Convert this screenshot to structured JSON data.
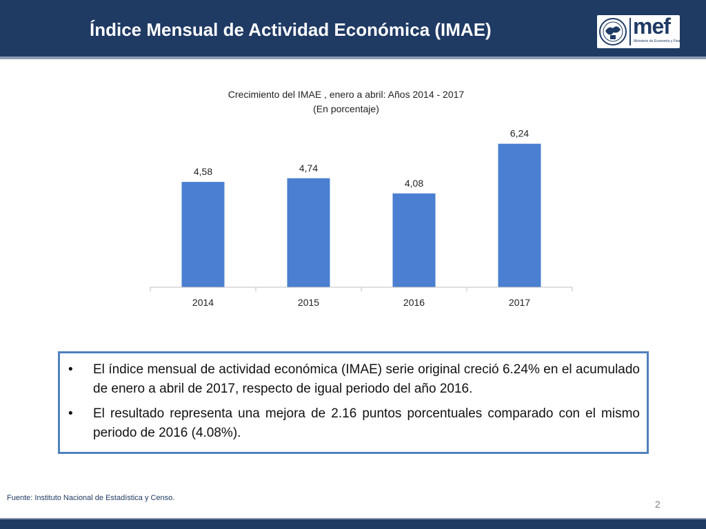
{
  "header": {
    "title": "Índice Mensual de Actividad Económica (IMAE)"
  },
  "logo": {
    "text": "mef",
    "subtitle": "Ministerio de Economía y Finanzas"
  },
  "colors": {
    "header_bg": "#1f3a63",
    "bar": "#4a7fd1",
    "box_border": "#4f81bd"
  },
  "chart_data": {
    "type": "bar",
    "title": "Crecimiento del  IMAE , enero  a abril:  Años 2014 - 2017",
    "subtitle": "(En porcentaje)",
    "categories": [
      "2014",
      "2015",
      "2016",
      "2017"
    ],
    "values": [
      4.58,
      4.74,
      4.08,
      6.24
    ],
    "value_labels": [
      "4,58",
      "4,74",
      "4,08",
      "6,24"
    ],
    "ylim": [
      0,
      6.8
    ],
    "grid": false,
    "legend": "none",
    "xlabel": "",
    "ylabel": ""
  },
  "notes": [
    "El índice mensual de actividad económica (IMAE) serie original creció 6.24% en el acumulado de enero a abril de 2017, respecto de igual periodo del año 2016.",
    "El resultado representa una mejora de 2.16 puntos porcentuales comparado  con el mismo periodo de 2016 (4.08%)."
  ],
  "bullet": "•",
  "footer": {
    "source": "Fuente: Instituto Nacional de Estadística y Censo.",
    "page": "2"
  }
}
